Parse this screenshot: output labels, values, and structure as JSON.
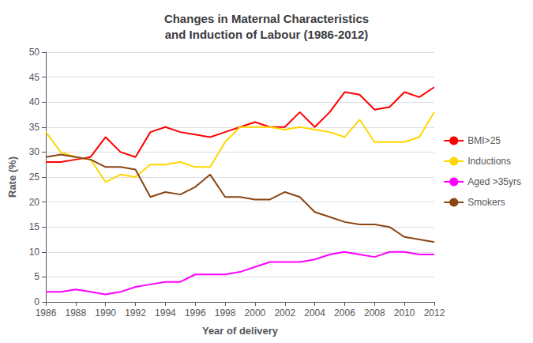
{
  "chart_data": {
    "type": "line",
    "title": "Changes in Maternal Characteristics\nand Induction of Labour (1986-2012)",
    "x_label": "Year of delivery",
    "y_label": "Rate (%)",
    "x": [
      1986,
      1987,
      1988,
      1989,
      1990,
      1991,
      1992,
      1993,
      1994,
      1995,
      1996,
      1997,
      1998,
      1999,
      2000,
      2001,
      2002,
      2003,
      2004,
      2005,
      2006,
      2007,
      2008,
      2009,
      2010,
      2011,
      2012
    ],
    "series": [
      {
        "name": "BMI>25",
        "color": "#FF0000",
        "values": [
          28,
          28,
          28.5,
          29,
          33,
          30,
          29,
          34,
          35,
          34,
          33.5,
          33,
          34,
          35,
          36,
          35,
          35,
          38,
          35,
          38,
          42,
          41.5,
          38.5,
          39,
          42,
          41,
          43
        ]
      },
      {
        "name": "Inductions",
        "color": "#FFD700",
        "values": [
          34,
          30,
          29,
          28.5,
          24,
          25.5,
          25,
          27.5,
          27.5,
          28,
          27,
          27,
          32,
          35,
          35,
          35,
          34.5,
          35,
          34.5,
          34,
          33,
          36.5,
          32,
          32,
          32,
          33,
          38
        ]
      },
      {
        "name": "Aged >35yrs",
        "color": "#FF00FF",
        "values": [
          2,
          2,
          2.5,
          2,
          1.5,
          2,
          3,
          3.5,
          4,
          4,
          5.5,
          5.5,
          5.5,
          6,
          7,
          8,
          8,
          8,
          8.5,
          9.5,
          10,
          9.5,
          9,
          10,
          10,
          9.5,
          9.5
        ]
      },
      {
        "name": "Smokers",
        "color": "#8B4513",
        "values": [
          29,
          29.5,
          29,
          28.5,
          27,
          27,
          26.5,
          21,
          22,
          21.5,
          23,
          25.5,
          21,
          21,
          20.5,
          20.5,
          22,
          21,
          18,
          17,
          16,
          15.5,
          15.5,
          15,
          13,
          12.5,
          12
        ]
      }
    ],
    "xlim": [
      1986,
      2012
    ],
    "xticks": [
      1986,
      1988,
      1990,
      1992,
      1994,
      1996,
      1998,
      2000,
      2002,
      2004,
      2006,
      2008,
      2010,
      2012
    ],
    "ylim": [
      0,
      50
    ],
    "yticks": [
      0,
      5,
      10,
      15,
      20,
      25,
      30,
      35,
      40,
      45,
      50
    ],
    "grid": true,
    "legend": "right"
  }
}
